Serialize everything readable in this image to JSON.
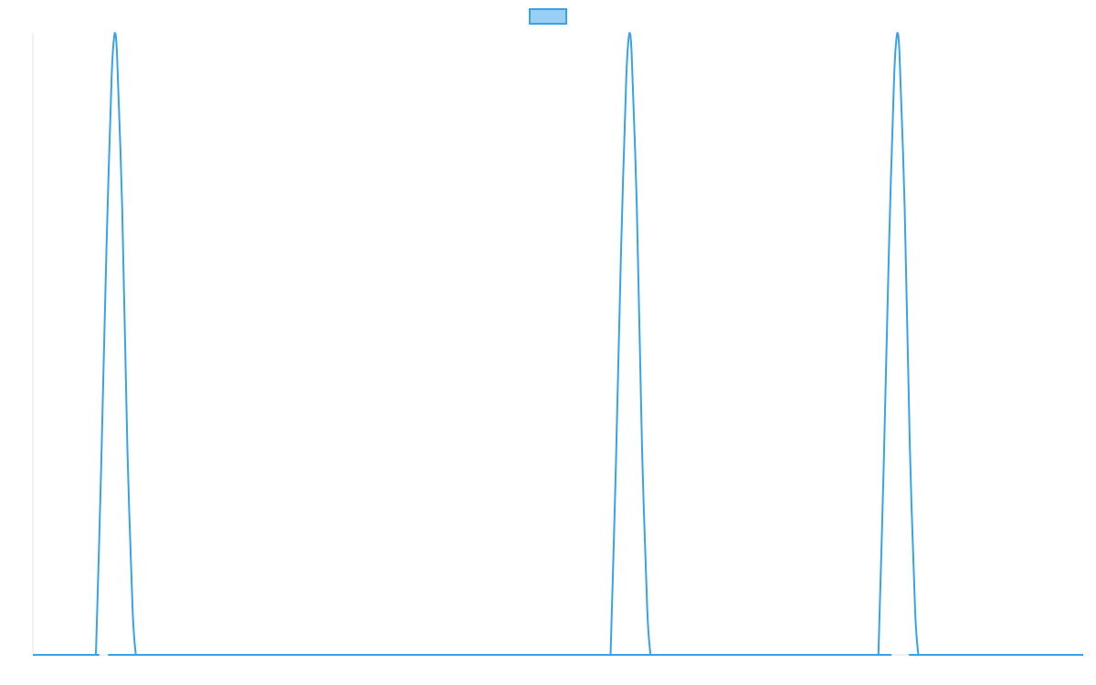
{
  "chart_data": {
    "type": "line",
    "title": "",
    "xlabel": "",
    "ylabel": "",
    "x_range": [
      0,
      1
    ],
    "y_range": [
      0,
      1
    ],
    "grid": false,
    "legend": {
      "position": "top-center",
      "entries": [
        {
          "label": "",
          "fill_color": "#99CFF4",
          "border_color": "#36A2EB"
        }
      ]
    },
    "series": [
      {
        "color": "#36A2EB",
        "x": [
          0.0,
          0.059,
          0.06,
          0.065,
          0.07,
          0.075,
          0.078,
          0.08,
          0.085,
          0.09,
          0.095,
          0.098,
          0.099,
          0.549,
          0.55,
          0.555,
          0.56,
          0.565,
          0.568,
          0.57,
          0.575,
          0.58,
          0.585,
          0.588,
          0.589,
          0.804,
          0.805,
          0.81,
          0.815,
          0.82,
          0.823,
          0.825,
          0.83,
          0.835,
          0.84,
          0.843,
          0.844,
          1.0
        ],
        "y": [
          0.0,
          0.0,
          0.0,
          0.3,
          0.65,
          0.93,
          1.0,
          0.97,
          0.72,
          0.33,
          0.07,
          0.0,
          0.0,
          0.0,
          0.0,
          0.3,
          0.65,
          0.93,
          1.0,
          0.97,
          0.72,
          0.33,
          0.07,
          0.0,
          0.0,
          0.0,
          0.0,
          0.3,
          0.65,
          0.93,
          1.0,
          0.97,
          0.72,
          0.33,
          0.07,
          0.0,
          0.0,
          0.0
        ]
      }
    ]
  }
}
